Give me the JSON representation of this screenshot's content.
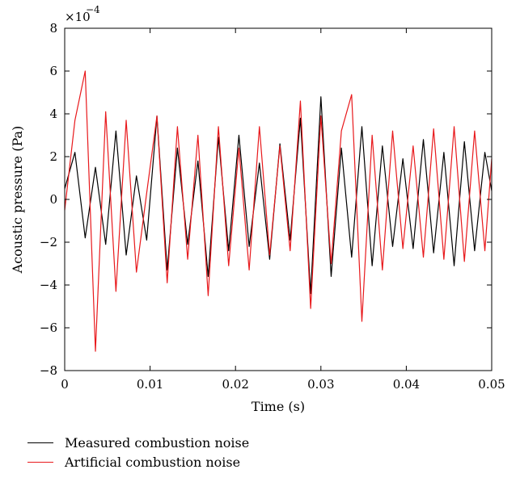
{
  "chart_data": {
    "type": "line",
    "title": "",
    "xlabel": "Time (s)",
    "ylabel": "Acoustic pressure (Pa)",
    "y_scale_label": {
      "base": "×10",
      "exp": "−4"
    },
    "xlim": [
      0,
      0.05
    ],
    "ylim": [
      -8,
      8
    ],
    "x_ticks": [
      0,
      0.01,
      0.02,
      0.03,
      0.04,
      0.05
    ],
    "x_tick_labels": [
      "0",
      "0.01",
      "0.02",
      "0.03",
      "0.04",
      "0.05"
    ],
    "y_ticks": [
      -8,
      -6,
      -4,
      -2,
      0,
      2,
      4,
      6,
      8
    ],
    "y_tick_labels": [
      "−8",
      "−6",
      "−4",
      "−2",
      "0",
      "2",
      "4",
      "6",
      "8"
    ],
    "grid": false,
    "legend_position": "bottom-left, below plot",
    "series": [
      {
        "name": "Measured combustion noise",
        "color": "#000000",
        "x": [
          0,
          0.0012,
          0.0024,
          0.0036,
          0.0048,
          0.006,
          0.0072,
          0.0084,
          0.0096,
          0.0108,
          0.012,
          0.0132,
          0.0144,
          0.0156,
          0.0168,
          0.018,
          0.0192,
          0.0204,
          0.0216,
          0.0228,
          0.024,
          0.0252,
          0.0264,
          0.0276,
          0.0288,
          0.03,
          0.0312,
          0.0324,
          0.0336,
          0.0348,
          0.036,
          0.0372,
          0.0384,
          0.0396,
          0.0408,
          0.042,
          0.0432,
          0.0444,
          0.0456,
          0.0468,
          0.048,
          0.0492,
          0.05
        ],
        "values": [
          0.5,
          2.2,
          -1.8,
          1.5,
          -2.1,
          3.2,
          -2.6,
          1.1,
          -1.9,
          3.9,
          -3.3,
          2.4,
          -2.1,
          1.8,
          -3.6,
          2.9,
          -2.4,
          3.0,
          -2.2,
          1.7,
          -2.8,
          2.6,
          -1.9,
          3.8,
          -4.4,
          4.8,
          -3.6,
          2.4,
          -2.7,
          3.4,
          -3.1,
          2.5,
          -2.2,
          1.9,
          -2.3,
          2.8,
          -2.5,
          2.2,
          -3.1,
          2.7,
          -2.4,
          2.2,
          0.4
        ]
      },
      {
        "name": "Artificial combustion noise",
        "color": "#e8191c",
        "x": [
          0,
          0.0012,
          0.0024,
          0.0036,
          0.0048,
          0.006,
          0.0072,
          0.0084,
          0.0096,
          0.0108,
          0.012,
          0.0132,
          0.0144,
          0.0156,
          0.0168,
          0.018,
          0.0192,
          0.0204,
          0.0216,
          0.0228,
          0.024,
          0.0252,
          0.0264,
          0.0276,
          0.0288,
          0.03,
          0.0312,
          0.0324,
          0.0336,
          0.0348,
          0.036,
          0.0372,
          0.0384,
          0.0396,
          0.0408,
          0.042,
          0.0432,
          0.0444,
          0.0456,
          0.0468,
          0.048,
          0.0492,
          0.05
        ],
        "values": [
          -0.5,
          3.7,
          6.0,
          -7.1,
          4.1,
          -4.3,
          3.7,
          -3.4,
          0.3,
          3.9,
          -3.9,
          3.4,
          -2.8,
          3.0,
          -4.5,
          3.4,
          -3.1,
          2.4,
          -3.3,
          3.4,
          -2.6,
          2.5,
          -2.4,
          4.6,
          -5.1,
          3.9,
          -3.0,
          3.2,
          4.9,
          -5.7,
          3.0,
          -3.3,
          3.2,
          -2.3,
          2.5,
          -2.7,
          3.3,
          -2.8,
          3.4,
          -2.9,
          3.2,
          -2.4,
          1.9
        ]
      }
    ]
  }
}
